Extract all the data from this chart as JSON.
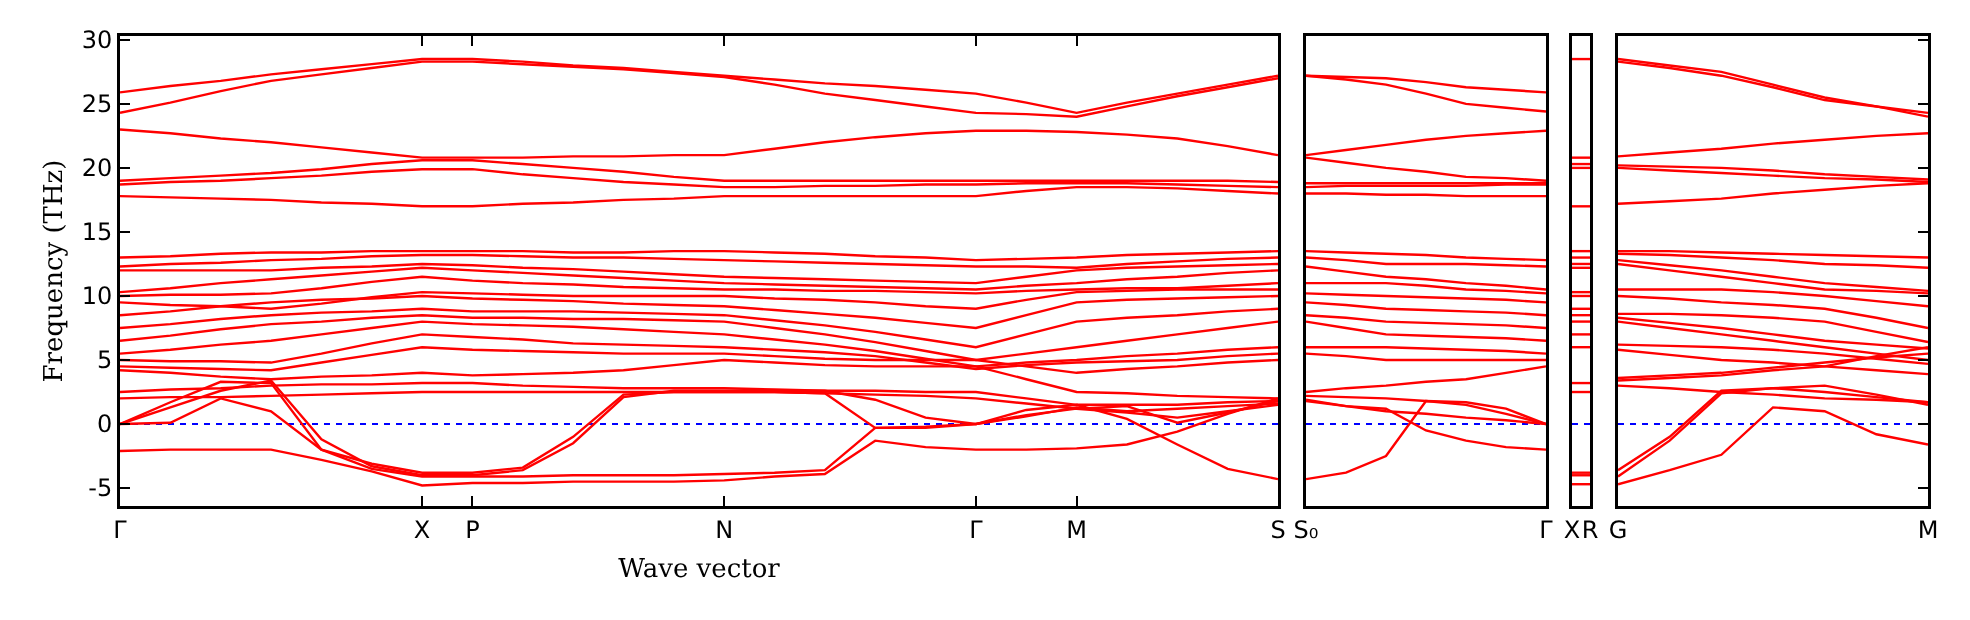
{
  "chart_data": [
    {
      "type": "line",
      "ylabel": "Frequency (THz)",
      "xlabel": "Wave vector",
      "ylim": [
        -6.4,
        30.3
      ],
      "yticks": [
        -5,
        0,
        5,
        10,
        15,
        20,
        25,
        30
      ],
      "categories": [
        "Γ",
        null,
        null,
        null,
        null,
        null,
        "X",
        "P",
        null,
        null,
        null,
        null,
        "N",
        null,
        null,
        null,
        null,
        "Γ",
        null,
        "M",
        null,
        null,
        null,
        "S"
      ],
      "ref_lines": [
        {
          "axis": "y",
          "value": 0,
          "color": "#0000ff",
          "line_style": "dotted"
        }
      ],
      "series": [
        {
          "color": "#ff0000",
          "values": [
            25.9,
            26.4,
            26.8,
            27.3,
            27.7,
            28.1,
            28.5,
            28.5,
            28.3,
            28.0,
            27.8,
            27.5,
            27.2,
            26.9,
            26.6,
            26.4,
            26.1,
            25.8,
            25.1,
            24.3,
            25.1,
            25.8,
            26.5,
            27.2
          ]
        },
        {
          "color": "#ff0000",
          "values": [
            24.3,
            25.1,
            26.0,
            26.8,
            27.3,
            27.8,
            28.3,
            28.3,
            28.1,
            27.9,
            27.7,
            27.4,
            27.1,
            26.5,
            25.8,
            25.3,
            24.8,
            24.3,
            24.2,
            24.0,
            24.8,
            25.6,
            26.3,
            27.0
          ]
        },
        {
          "color": "#ff0000",
          "values": [
            23.0,
            22.7,
            22.3,
            22.0,
            21.6,
            21.2,
            20.8,
            20.8,
            20.8,
            20.9,
            20.9,
            21.0,
            21.0,
            21.5,
            22.0,
            22.4,
            22.7,
            22.9,
            22.9,
            22.8,
            22.6,
            22.3,
            21.7,
            21.0
          ]
        },
        {
          "color": "#ff0000",
          "values": [
            19.0,
            19.2,
            19.4,
            19.6,
            19.9,
            20.3,
            20.6,
            20.6,
            20.3,
            20.0,
            19.7,
            19.3,
            19.0,
            19.0,
            19.0,
            19.0,
            19.0,
            19.0,
            19.0,
            19.0,
            19.0,
            19.0,
            19.0,
            18.9
          ]
        },
        {
          "color": "#ff0000",
          "values": [
            18.7,
            18.9,
            19.0,
            19.2,
            19.4,
            19.7,
            19.9,
            19.9,
            19.5,
            19.2,
            18.9,
            18.7,
            18.5,
            18.5,
            18.6,
            18.6,
            18.7,
            18.7,
            18.8,
            18.8,
            18.8,
            18.7,
            18.6,
            18.5
          ]
        },
        {
          "color": "#ff0000",
          "values": [
            17.8,
            17.7,
            17.6,
            17.5,
            17.3,
            17.2,
            17.0,
            17.0,
            17.2,
            17.3,
            17.5,
            17.6,
            17.8,
            17.8,
            17.8,
            17.8,
            17.8,
            17.8,
            18.2,
            18.5,
            18.5,
            18.4,
            18.2,
            18.0
          ]
        },
        {
          "color": "#ff0000",
          "values": [
            13.0,
            13.1,
            13.3,
            13.4,
            13.4,
            13.5,
            13.5,
            13.5,
            13.5,
            13.4,
            13.4,
            13.5,
            13.5,
            13.4,
            13.3,
            13.1,
            13.0,
            12.8,
            12.9,
            13.0,
            13.2,
            13.3,
            13.4,
            13.5
          ]
        },
        {
          "color": "#ff0000",
          "values": [
            12.3,
            12.5,
            12.6,
            12.8,
            12.9,
            13.1,
            13.2,
            13.2,
            13.1,
            13.0,
            13.0,
            12.9,
            12.8,
            12.7,
            12.6,
            12.5,
            12.4,
            12.3,
            12.3,
            12.2,
            12.5,
            12.7,
            12.9,
            13.0
          ]
        },
        {
          "color": "#ff0000",
          "values": [
            12.0,
            12.0,
            12.0,
            12.0,
            12.2,
            12.3,
            12.5,
            12.4,
            12.2,
            12.1,
            11.9,
            11.7,
            11.5,
            11.4,
            11.3,
            11.2,
            11.1,
            11.0,
            11.5,
            12.0,
            12.2,
            12.3,
            12.4,
            12.5
          ]
        },
        {
          "color": "#ff0000",
          "values": [
            10.3,
            10.6,
            11.0,
            11.3,
            11.6,
            11.9,
            12.2,
            12.0,
            11.8,
            11.6,
            11.4,
            11.2,
            11.0,
            10.9,
            10.8,
            10.7,
            10.6,
            10.5,
            10.8,
            11.0,
            11.3,
            11.5,
            11.8,
            12.0
          ]
        },
        {
          "color": "#ff0000",
          "values": [
            10.0,
            10.1,
            10.1,
            10.2,
            10.6,
            11.1,
            11.5,
            11.2,
            11.0,
            10.9,
            10.7,
            10.6,
            10.5,
            10.5,
            10.4,
            10.4,
            10.3,
            10.2,
            10.4,
            10.5,
            10.6,
            10.6,
            10.8,
            11.0
          ]
        },
        {
          "color": "#ff0000",
          "values": [
            9.5,
            9.3,
            9.2,
            9.0,
            9.4,
            9.9,
            10.3,
            10.2,
            10.1,
            10.0,
            10.0,
            10.0,
            10.0,
            9.8,
            9.7,
            9.5,
            9.2,
            9.0,
            9.7,
            10.3,
            10.4,
            10.5,
            10.5,
            10.5
          ]
        },
        {
          "color": "#ff0000",
          "values": [
            8.5,
            8.8,
            9.2,
            9.5,
            9.7,
            9.8,
            10.0,
            9.8,
            9.7,
            9.6,
            9.4,
            9.3,
            9.2,
            8.9,
            8.6,
            8.3,
            7.9,
            7.5,
            8.5,
            9.5,
            9.7,
            9.8,
            9.9,
            10.0
          ]
        },
        {
          "color": "#ff0000",
          "values": [
            7.5,
            7.8,
            8.2,
            8.5,
            8.7,
            8.8,
            9.0,
            8.8,
            8.8,
            8.8,
            8.7,
            8.6,
            8.5,
            8.1,
            7.7,
            7.2,
            6.6,
            6.0,
            7.0,
            8.0,
            8.3,
            8.5,
            8.8,
            9.0
          ]
        },
        {
          "color": "#ff0000",
          "values": [
            6.5,
            6.9,
            7.4,
            7.8,
            8.0,
            8.3,
            8.5,
            8.3,
            8.3,
            8.2,
            8.2,
            8.1,
            8.0,
            7.5,
            7.0,
            6.4,
            5.7,
            5.0,
            5.5,
            6.0,
            6.5,
            7.0,
            7.5,
            8.0
          ]
        },
        {
          "color": "#ff0000",
          "values": [
            5.5,
            5.8,
            6.2,
            6.5,
            7.0,
            7.5,
            8.0,
            7.8,
            7.7,
            7.6,
            7.4,
            7.2,
            7.0,
            6.6,
            6.2,
            5.7,
            5.1,
            4.5,
            4.8,
            5.0,
            5.3,
            5.5,
            5.8,
            6.0
          ]
        },
        {
          "color": "#ff0000",
          "values": [
            5.0,
            4.9,
            4.9,
            4.8,
            5.5,
            6.3,
            7.0,
            6.8,
            6.6,
            6.3,
            6.2,
            6.1,
            6.0,
            5.8,
            5.6,
            5.3,
            4.8,
            4.3,
            4.6,
            4.8,
            4.9,
            5.0,
            5.3,
            5.5
          ]
        },
        {
          "color": "#ff0000",
          "values": [
            4.5,
            4.4,
            4.3,
            4.2,
            4.8,
            5.4,
            6.0,
            5.8,
            5.7,
            5.6,
            5.5,
            5.5,
            5.5,
            5.3,
            5.1,
            5.0,
            5.0,
            5.0,
            4.5,
            4.0,
            4.3,
            4.5,
            4.8,
            5.0
          ]
        },
        {
          "color": "#ff0000",
          "values": [
            4.2,
            4.0,
            3.7,
            3.5,
            3.7,
            3.8,
            4.0,
            3.8,
            3.9,
            4.0,
            4.2,
            4.6,
            5.0,
            4.8,
            4.6,
            4.5,
            4.5,
            4.5,
            3.5,
            2.5,
            2.4,
            2.2,
            2.1,
            2.0
          ]
        },
        {
          "color": "#ff0000",
          "values": [
            2.5,
            2.7,
            2.8,
            3.0,
            3.1,
            3.1,
            3.2,
            3.2,
            3.0,
            2.9,
            2.8,
            2.8,
            2.8,
            2.7,
            2.6,
            2.6,
            2.5,
            2.5,
            2.0,
            1.5,
            1.5,
            1.5,
            1.7,
            1.8
          ]
        },
        {
          "color": "#ff0000",
          "values": [
            2.0,
            2.1,
            2.1,
            2.2,
            2.3,
            2.4,
            2.5,
            2.5,
            2.5,
            2.5,
            2.5,
            2.5,
            2.5,
            2.5,
            2.4,
            2.3,
            2.2,
            2.0,
            1.6,
            1.2,
            0.9,
            0.5,
            1.0,
            1.5
          ]
        },
        {
          "color": "#ff0000",
          "values": [
            0,
            1.7,
            3.3,
            3.2,
            -2.0,
            -3.1,
            -3.8,
            -3.8,
            -3.4,
            -1.0,
            2.3,
            2.5,
            2.5,
            2.5,
            2.4,
            -0.3,
            -0.3,
            0,
            1.1,
            1.5,
            0.4,
            -1.6,
            -3.5,
            -4.3
          ]
        },
        {
          "color": "#ff0000",
          "values": [
            0,
            1.3,
            2.6,
            3.4,
            -1.2,
            -3.3,
            -4.0,
            -4.0,
            -3.6,
            -1.5,
            2.1,
            2.6,
            2.6,
            2.6,
            2.6,
            1.9,
            0.5,
            0,
            0.7,
            1.2,
            1.4,
            0.1,
            0.9,
            1.8
          ]
        },
        {
          "color": "#ff0000",
          "values": [
            0,
            0.1,
            2.0,
            1.0,
            -2.0,
            -3.5,
            -4.1,
            -4.1,
            -4.1,
            -4.0,
            -4.0,
            -4.0,
            -3.9,
            -3.8,
            -3.6,
            -0.3,
            -0.2,
            0,
            0.6,
            1.3,
            1.0,
            1.2,
            1.4,
            1.6
          ]
        },
        {
          "color": "#ff0000",
          "values": [
            -2.1,
            -2.0,
            -2.0,
            -2.0,
            -2.8,
            -3.7,
            -4.8,
            -4.6,
            -4.6,
            -4.5,
            -4.5,
            -4.5,
            -4.4,
            -4.1,
            -3.9,
            -1.3,
            -1.8,
            -2.0,
            -2.0,
            -1.9,
            -1.6,
            -0.6,
            0.8,
            2.0
          ]
        }
      ]
    },
    {
      "type": "line",
      "ylim": [
        -6.4,
        30.3
      ],
      "yticks": [
        -5,
        0,
        5,
        10,
        15,
        20,
        25,
        30
      ],
      "tick_labels": "x",
      "categories": [
        "S₀",
        null,
        null,
        null,
        null,
        null,
        "Γ"
      ],
      "ref_lines": [
        {
          "axis": "y",
          "value": 0,
          "color": "#0000ff",
          "line_style": "dotted"
        }
      ],
      "series": [
        {
          "color": "#ff0000",
          "values": [
            27.2,
            27.1,
            27.0,
            26.7,
            26.3,
            26.1,
            25.9
          ]
        },
        {
          "color": "#ff0000",
          "values": [
            27.2,
            26.9,
            26.5,
            25.8,
            25.0,
            24.7,
            24.4
          ]
        },
        {
          "color": "#ff0000",
          "values": [
            21.0,
            21.4,
            21.8,
            22.2,
            22.5,
            22.7,
            22.9
          ]
        },
        {
          "color": "#ff0000",
          "values": [
            20.8,
            20.4,
            20.0,
            19.7,
            19.3,
            19.2,
            19.0
          ]
        },
        {
          "color": "#ff0000",
          "values": [
            18.8,
            18.8,
            18.8,
            18.8,
            18.8,
            18.8,
            18.8
          ]
        },
        {
          "color": "#ff0000",
          "values": [
            18.5,
            18.6,
            18.6,
            18.6,
            18.6,
            18.7,
            18.7
          ]
        },
        {
          "color": "#ff0000",
          "values": [
            18.0,
            18.0,
            17.9,
            17.9,
            17.8,
            17.8,
            17.8
          ]
        },
        {
          "color": "#ff0000",
          "values": [
            13.5,
            13.4,
            13.3,
            13.2,
            13.0,
            12.9,
            12.8
          ]
        },
        {
          "color": "#ff0000",
          "values": [
            13.0,
            12.8,
            12.5,
            12.5,
            12.5,
            12.4,
            12.3
          ]
        },
        {
          "color": "#ff0000",
          "values": [
            12.3,
            11.9,
            11.5,
            11.3,
            11.0,
            10.8,
            10.5
          ]
        },
        {
          "color": "#ff0000",
          "values": [
            11.0,
            11.0,
            11.0,
            10.8,
            10.5,
            10.4,
            10.2
          ]
        },
        {
          "color": "#ff0000",
          "values": [
            10.2,
            10.1,
            10.0,
            9.9,
            9.8,
            9.7,
            9.5
          ]
        },
        {
          "color": "#ff0000",
          "values": [
            9.5,
            9.3,
            9.0,
            8.9,
            8.8,
            8.7,
            8.5
          ]
        },
        {
          "color": "#ff0000",
          "values": [
            8.5,
            8.3,
            8.0,
            7.9,
            7.8,
            7.7,
            7.5
          ]
        },
        {
          "color": "#ff0000",
          "values": [
            8.0,
            7.5,
            7.0,
            6.9,
            6.8,
            6.7,
            6.5
          ]
        },
        {
          "color": "#ff0000",
          "values": [
            6.0,
            6.0,
            6.0,
            5.9,
            5.8,
            5.7,
            5.5
          ]
        },
        {
          "color": "#ff0000",
          "values": [
            5.5,
            5.3,
            5.0,
            5.0,
            5.0,
            5.0,
            5.0
          ]
        },
        {
          "color": "#ff0000",
          "values": [
            2.5,
            2.8,
            3.0,
            3.3,
            3.5,
            4.0,
            4.5
          ]
        },
        {
          "color": "#ff0000",
          "values": [
            2.2,
            2.1,
            2.0,
            1.8,
            1.5,
            0.8,
            0
          ]
        },
        {
          "color": "#ff0000",
          "values": [
            1.8,
            1.4,
            1.0,
            0.8,
            0.5,
            0.3,
            0
          ]
        },
        {
          "color": "#ff0000",
          "values": [
            -4.3,
            -3.8,
            -2.5,
            1.8,
            1.7,
            1.2,
            0
          ]
        },
        {
          "color": "#ff0000",
          "values": [
            1.9,
            1.4,
            1.2,
            -0.5,
            -1.3,
            -1.8,
            -2.0
          ]
        }
      ]
    },
    {
      "type": "line",
      "ylim": [
        -6.4,
        30.3
      ],
      "yticks": [
        -5,
        0,
        5,
        10,
        15,
        20,
        25,
        30
      ],
      "tick_labels": "x",
      "categories": [
        "X",
        "R"
      ],
      "ref_lines": [
        {
          "axis": "y",
          "value": 0,
          "color": "#0000ff",
          "line_style": "dotted"
        }
      ],
      "series": [
        {
          "color": "#ff0000",
          "values": [
            28.5,
            28.5
          ]
        },
        {
          "color": "#ff0000",
          "values": [
            20.8,
            20.8
          ]
        },
        {
          "color": "#ff0000",
          "values": [
            20.3,
            20.3
          ]
        },
        {
          "color": "#ff0000",
          "values": [
            20.0,
            20.0
          ]
        },
        {
          "color": "#ff0000",
          "values": [
            17.0,
            17.0
          ]
        },
        {
          "color": "#ff0000",
          "values": [
            13.5,
            13.5
          ]
        },
        {
          "color": "#ff0000",
          "values": [
            13.0,
            13.0
          ]
        },
        {
          "color": "#ff0000",
          "values": [
            12.5,
            12.5
          ]
        },
        {
          "color": "#ff0000",
          "values": [
            12.2,
            12.2
          ]
        },
        {
          "color": "#ff0000",
          "values": [
            10.3,
            10.3
          ]
        },
        {
          "color": "#ff0000",
          "values": [
            10.0,
            10.0
          ]
        },
        {
          "color": "#ff0000",
          "values": [
            9.0,
            9.0
          ]
        },
        {
          "color": "#ff0000",
          "values": [
            8.5,
            8.5
          ]
        },
        {
          "color": "#ff0000",
          "values": [
            8.0,
            8.0
          ]
        },
        {
          "color": "#ff0000",
          "values": [
            7.0,
            7.0
          ]
        },
        {
          "color": "#ff0000",
          "values": [
            6.0,
            6.0
          ]
        },
        {
          "color": "#ff0000",
          "values": [
            3.2,
            3.2
          ]
        },
        {
          "color": "#ff0000",
          "values": [
            2.5,
            2.5
          ]
        },
        {
          "color": "#ff0000",
          "values": [
            -3.8,
            -3.8
          ]
        },
        {
          "color": "#ff0000",
          "values": [
            -4.0,
            -4.0
          ]
        },
        {
          "color": "#ff0000",
          "values": [
            -4.7,
            -4.7
          ]
        }
      ]
    },
    {
      "type": "line",
      "ylim": [
        -6.4,
        30.3
      ],
      "yticks": [
        -5,
        0,
        5,
        10,
        15,
        20,
        25,
        30
      ],
      "tick_labels": "x",
      "categories": [
        "G",
        null,
        null,
        null,
        null,
        null,
        "M"
      ],
      "ref_lines": [
        {
          "axis": "y",
          "value": 0,
          "color": "#0000ff",
          "line_style": "dotted"
        }
      ],
      "series": [
        {
          "color": "#ff0000",
          "values": [
            28.5,
            28.0,
            27.5,
            26.5,
            25.5,
            24.8,
            24.0
          ]
        },
        {
          "color": "#ff0000",
          "values": [
            28.3,
            27.8,
            27.2,
            26.3,
            25.3,
            24.8,
            24.3
          ]
        },
        {
          "color": "#ff0000",
          "values": [
            20.9,
            21.2,
            21.5,
            21.9,
            22.2,
            22.5,
            22.7
          ]
        },
        {
          "color": "#ff0000",
          "values": [
            20.2,
            20.1,
            20.0,
            19.8,
            19.5,
            19.3,
            19.1
          ]
        },
        {
          "color": "#ff0000",
          "values": [
            20.0,
            19.8,
            19.6,
            19.4,
            19.2,
            19.1,
            18.9
          ]
        },
        {
          "color": "#ff0000",
          "values": [
            17.2,
            17.4,
            17.6,
            18.0,
            18.3,
            18.6,
            18.8
          ]
        },
        {
          "color": "#ff0000",
          "values": [
            13.5,
            13.5,
            13.4,
            13.3,
            13.2,
            13.1,
            13.0
          ]
        },
        {
          "color": "#ff0000",
          "values": [
            13.3,
            13.2,
            13.0,
            12.8,
            12.5,
            12.4,
            12.2
          ]
        },
        {
          "color": "#ff0000",
          "values": [
            12.8,
            12.4,
            12.0,
            11.5,
            11.0,
            10.7,
            10.4
          ]
        },
        {
          "color": "#ff0000",
          "values": [
            12.5,
            12.0,
            11.5,
            11.0,
            10.5,
            10.4,
            10.2
          ]
        },
        {
          "color": "#ff0000",
          "values": [
            10.5,
            10.5,
            10.5,
            10.3,
            10.0,
            9.6,
            9.2
          ]
        },
        {
          "color": "#ff0000",
          "values": [
            10.0,
            9.8,
            9.5,
            9.3,
            9.0,
            8.3,
            7.5
          ]
        },
        {
          "color": "#ff0000",
          "values": [
            8.6,
            8.6,
            8.5,
            8.3,
            8.0,
            7.2,
            6.4
          ]
        },
        {
          "color": "#ff0000",
          "values": [
            8.3,
            7.9,
            7.5,
            7.0,
            6.5,
            6.2,
            5.9
          ]
        },
        {
          "color": "#ff0000",
          "values": [
            8.0,
            7.5,
            7.0,
            6.5,
            6.0,
            5.5,
            5.0
          ]
        },
        {
          "color": "#ff0000",
          "values": [
            6.2,
            6.1,
            6.0,
            5.8,
            5.5,
            5.1,
            4.7
          ]
        },
        {
          "color": "#ff0000",
          "values": [
            5.8,
            5.4,
            5.0,
            4.8,
            4.5,
            4.2,
            3.9
          ]
        },
        {
          "color": "#ff0000",
          "values": [
            3.6,
            3.8,
            4.0,
            4.4,
            4.8,
            5.2,
            5.5
          ]
        },
        {
          "color": "#ff0000",
          "values": [
            3.4,
            3.6,
            3.8,
            4.2,
            4.5,
            5.3,
            6.0
          ]
        },
        {
          "color": "#ff0000",
          "values": [
            3.0,
            2.8,
            2.5,
            2.3,
            2.0,
            1.9,
            1.7
          ]
        },
        {
          "color": "#ff0000",
          "values": [
            -3.6,
            -1.0,
            2.6,
            2.8,
            3.0,
            2.3,
            1.5
          ]
        },
        {
          "color": "#ff0000",
          "values": [
            -4.1,
            -1.3,
            2.4,
            2.8,
            2.5,
            2.1,
            1.7
          ]
        },
        {
          "color": "#ff0000",
          "values": [
            -4.7,
            -3.6,
            -2.4,
            1.3,
            1.0,
            -0.8,
            -1.6
          ]
        }
      ]
    }
  ]
}
